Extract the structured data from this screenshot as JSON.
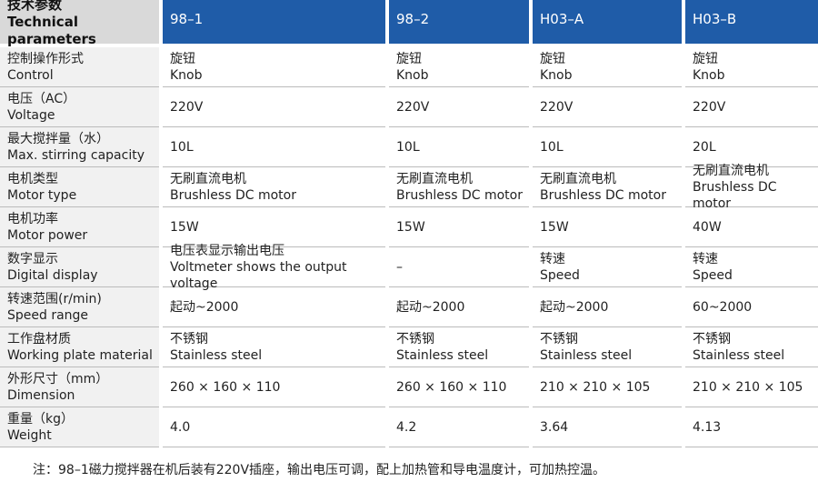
{
  "header": {
    "title_zh": "技术参数",
    "title_en": "Technical parameters",
    "columns": [
      "98–1",
      "98–2",
      "H03–A",
      "H03–B"
    ]
  },
  "rows": [
    {
      "label": [
        "控制操作形式",
        "Control"
      ],
      "cells": [
        [
          "旋钮",
          "Knob"
        ],
        [
          "旋钮",
          "Knob"
        ],
        [
          "旋钮",
          "Knob"
        ],
        [
          "旋钮",
          "Knob"
        ]
      ]
    },
    {
      "label": [
        "电压（AC）",
        "Voltage"
      ],
      "cells": [
        [
          "220V"
        ],
        [
          "220V"
        ],
        [
          "220V"
        ],
        [
          "220V"
        ]
      ]
    },
    {
      "label": [
        "最大搅拌量（水）",
        "Max. stirring capacity"
      ],
      "cells": [
        [
          "10L"
        ],
        [
          "10L"
        ],
        [
          "10L"
        ],
        [
          "20L"
        ]
      ]
    },
    {
      "label": [
        "电机类型",
        "Motor type"
      ],
      "cells": [
        [
          "无刷直流电机",
          "Brushless DC motor"
        ],
        [
          "无刷直流电机",
          "Brushless DC motor"
        ],
        [
          "无刷直流电机",
          "Brushless DC motor"
        ],
        [
          "无刷直流电机",
          "Brushless DC motor"
        ]
      ]
    },
    {
      "label": [
        "电机功率",
        "Motor power"
      ],
      "cells": [
        [
          "15W"
        ],
        [
          "15W"
        ],
        [
          "15W"
        ],
        [
          "40W"
        ]
      ]
    },
    {
      "label": [
        "数字显示",
        "Digital display"
      ],
      "cells": [
        [
          "电压表显示输出电压",
          "Voltmeter shows the output voltage"
        ],
        [
          "–"
        ],
        [
          "转速",
          "Speed"
        ],
        [
          "转速",
          "Speed"
        ]
      ]
    },
    {
      "label": [
        "转速范围(r/min)",
        "Speed range"
      ],
      "cells": [
        [
          "起动~2000"
        ],
        [
          "起动~2000"
        ],
        [
          "起动~2000"
        ],
        [
          "60~2000"
        ]
      ]
    },
    {
      "label": [
        "工作盘材质",
        "Working plate material"
      ],
      "cells": [
        [
          "不锈钢",
          "Stainless steel"
        ],
        [
          "不锈钢",
          "Stainless steel"
        ],
        [
          "不锈钢",
          "Stainless steel"
        ],
        [
          "不锈钢",
          "Stainless steel"
        ]
      ]
    },
    {
      "label": [
        "外形尺寸（mm）",
        "Dimension"
      ],
      "cells": [
        [
          "260 × 160 × 110"
        ],
        [
          "260 × 160 × 110"
        ],
        [
          "210 × 210 × 105"
        ],
        [
          "210 × 210 × 105"
        ]
      ]
    },
    {
      "label": [
        "重量（kg）",
        "Weight"
      ],
      "cells": [
        [
          "4.0"
        ],
        [
          "4.2"
        ],
        [
          "3.64"
        ],
        [
          "4.13"
        ]
      ]
    }
  ],
  "note": "注：98–1磁力搅拌器在机后装有220V插座，输出电压可调，配上加热管和导电温度计，可加热控温。"
}
